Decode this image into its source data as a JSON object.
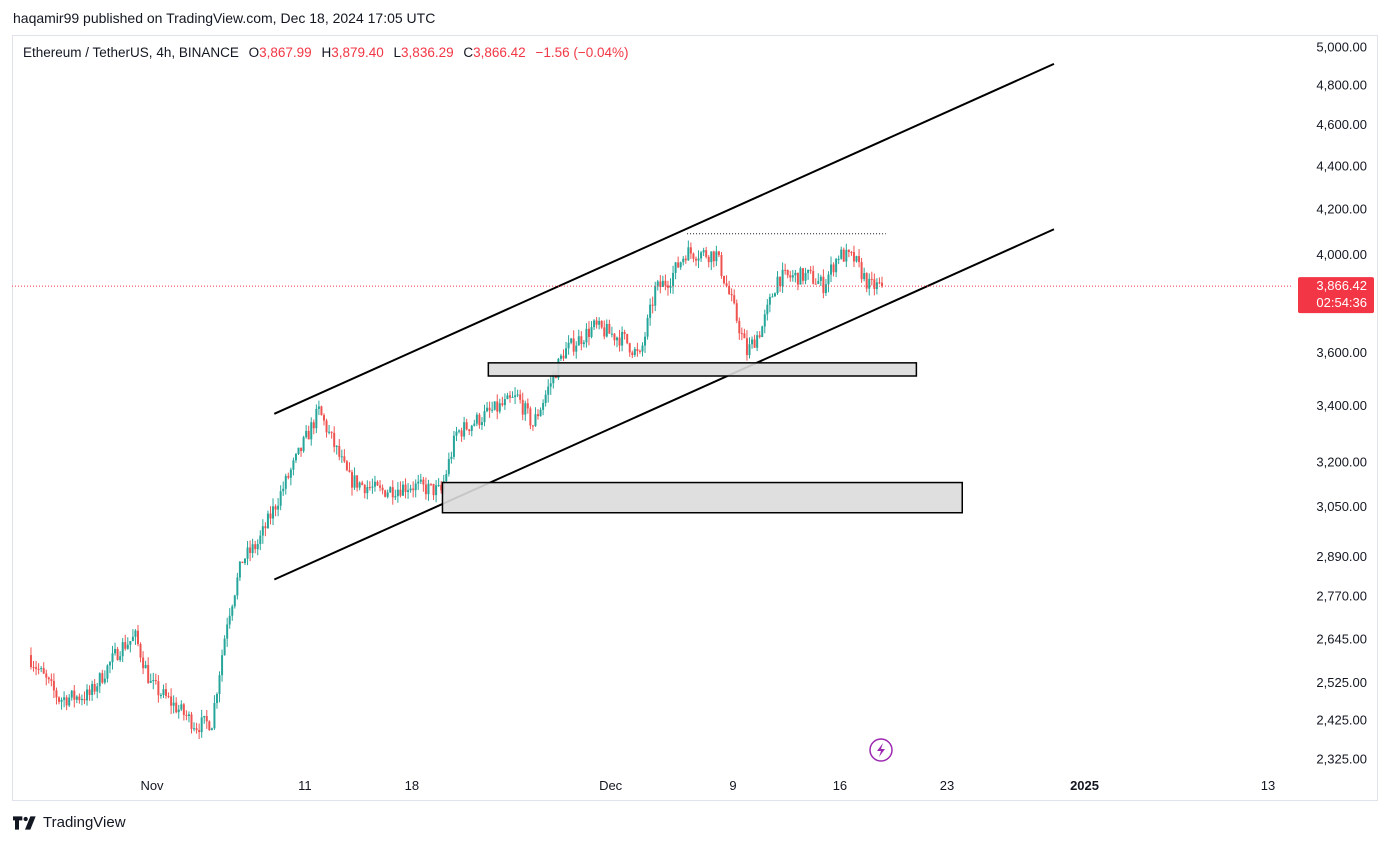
{
  "publisher_line": "haqamir99 published on TradingView.com, Dec 18, 2024 17:05 UTC",
  "legend": {
    "symbol": "Ethereum / TetherUS, 4h, BINANCE",
    "o_key": "O",
    "o_val": "3,867.99",
    "h_key": "H",
    "h_val": "3,879.40",
    "l_key": "L",
    "l_val": "3,836.29",
    "c_key": "C",
    "c_val": "3,866.42",
    "change": "−1.56 (−0.04%)"
  },
  "footer": {
    "brand": "TradingView",
    "logo_icon": "tradingview-logo-icon"
  },
  "colors": {
    "up": "#26a69a",
    "down": "#ef5350",
    "last_price_bg": "#f23645",
    "channel": "#000000",
    "zone_fill": "#dcdcdc"
  },
  "chart_data": {
    "type": "candlestick",
    "symbol": "ETHUSDT",
    "interval": "4h",
    "exchange": "BINANCE",
    "y_scale": "log",
    "ylim": [
      2290,
      5050
    ],
    "y_ticks": [
      {
        "value": 5000,
        "label": "5,000.00"
      },
      {
        "value": 4800,
        "label": "4,800.00"
      },
      {
        "value": 4600,
        "label": "4,600.00"
      },
      {
        "value": 4400,
        "label": "4,400.00"
      },
      {
        "value": 4200,
        "label": "4,200.00"
      },
      {
        "value": 4000,
        "label": "4,000.00"
      },
      {
        "value": 3600,
        "label": "3,600.00"
      },
      {
        "value": 3400,
        "label": "3,400.00"
      },
      {
        "value": 3200,
        "label": "3,200.00"
      },
      {
        "value": 3050,
        "label": "3,050.00"
      },
      {
        "value": 2890,
        "label": "2,890.00"
      },
      {
        "value": 2770,
        "label": "2,770.00"
      },
      {
        "value": 2645,
        "label": "2,645.00"
      },
      {
        "value": 2525,
        "label": "2,525.00"
      },
      {
        "value": 2425,
        "label": "2,425.00"
      },
      {
        "value": 2325,
        "label": "2,325.00"
      }
    ],
    "x_range": [
      "2024-10-24",
      "2025-01-14"
    ],
    "x_ticks": [
      {
        "date": "2024-11-01",
        "label": "Nov",
        "bold": false
      },
      {
        "date": "2024-11-11",
        "label": "11",
        "bold": false
      },
      {
        "date": "2024-11-18",
        "label": "18",
        "bold": false
      },
      {
        "date": "2024-12-01",
        "label": "Dec",
        "bold": false
      },
      {
        "date": "2024-12-09",
        "label": "9",
        "bold": false
      },
      {
        "date": "2024-12-16",
        "label": "16",
        "bold": false
      },
      {
        "date": "2024-12-23",
        "label": "23",
        "bold": false
      },
      {
        "date": "2025-01-01",
        "label": "2025",
        "bold": true
      },
      {
        "date": "2025-01-13",
        "label": "13",
        "bold": false
      }
    ],
    "last_price": {
      "value": 3866.42,
      "label": "3,866.42",
      "countdown": "02:54:36"
    },
    "price_path": [
      {
        "date": "2024-10-24",
        "price": 2600
      },
      {
        "date": "2024-10-26",
        "price": 2480
      },
      {
        "date": "2024-10-28",
        "price": 2490
      },
      {
        "date": "2024-10-30",
        "price": 2620
      },
      {
        "date": "2024-10-31",
        "price": 2650
      },
      {
        "date": "2024-11-01",
        "price": 2520
      },
      {
        "date": "2024-11-04",
        "price": 2410
      },
      {
        "date": "2024-11-05",
        "price": 2420
      },
      {
        "date": "2024-11-06",
        "price": 2700
      },
      {
        "date": "2024-11-07",
        "price": 2880
      },
      {
        "date": "2024-11-08",
        "price": 2930
      },
      {
        "date": "2024-11-10",
        "price": 3150
      },
      {
        "date": "2024-11-12",
        "price": 3380
      },
      {
        "date": "2024-11-14",
        "price": 3140
      },
      {
        "date": "2024-11-16",
        "price": 3100
      },
      {
        "date": "2024-11-18",
        "price": 3120
      },
      {
        "date": "2024-11-20",
        "price": 3100
      },
      {
        "date": "2024-11-21",
        "price": 3300
      },
      {
        "date": "2024-11-23",
        "price": 3370
      },
      {
        "date": "2024-11-25",
        "price": 3430
      },
      {
        "date": "2024-11-26",
        "price": 3330
      },
      {
        "date": "2024-11-28",
        "price": 3600
      },
      {
        "date": "2024-11-30",
        "price": 3700
      },
      {
        "date": "2024-12-02",
        "price": 3650
      },
      {
        "date": "2024-12-03",
        "price": 3580
      },
      {
        "date": "2024-12-04",
        "price": 3850
      },
      {
        "date": "2024-12-05",
        "price": 3900
      },
      {
        "date": "2024-12-06",
        "price": 4010
      },
      {
        "date": "2024-12-08",
        "price": 4000
      },
      {
        "date": "2024-12-09",
        "price": 3800
      },
      {
        "date": "2024-12-10",
        "price": 3600
      },
      {
        "date": "2024-12-11",
        "price": 3700
      },
      {
        "date": "2024-12-12",
        "price": 3900
      },
      {
        "date": "2024-12-14",
        "price": 3910
      },
      {
        "date": "2024-12-15",
        "price": 3870
      },
      {
        "date": "2024-12-16",
        "price": 4000
      },
      {
        "date": "2024-12-17",
        "price": 3980
      },
      {
        "date": "2024-12-18",
        "price": 3866
      }
    ],
    "drawings": {
      "channel_upper": [
        {
          "date": "2024-11-09",
          "price": 3370
        },
        {
          "date": "2024-12-30",
          "price": 4910
        }
      ],
      "channel_lower": [
        {
          "date": "2024-11-09",
          "price": 2820
        },
        {
          "date": "2024-12-30",
          "price": 4110
        }
      ],
      "high_line": {
        "from": "2024-12-06",
        "to": "2024-12-19",
        "price": 4090
      },
      "zones": [
        {
          "from": "2024-11-23",
          "to": "2024-12-21",
          "top": 3560,
          "bottom": 3510
        },
        {
          "from": "2024-11-20",
          "to": "2024-12-24",
          "top": 3130,
          "bottom": 3030
        }
      ],
      "marker_icon": "lightning-icon"
    }
  }
}
